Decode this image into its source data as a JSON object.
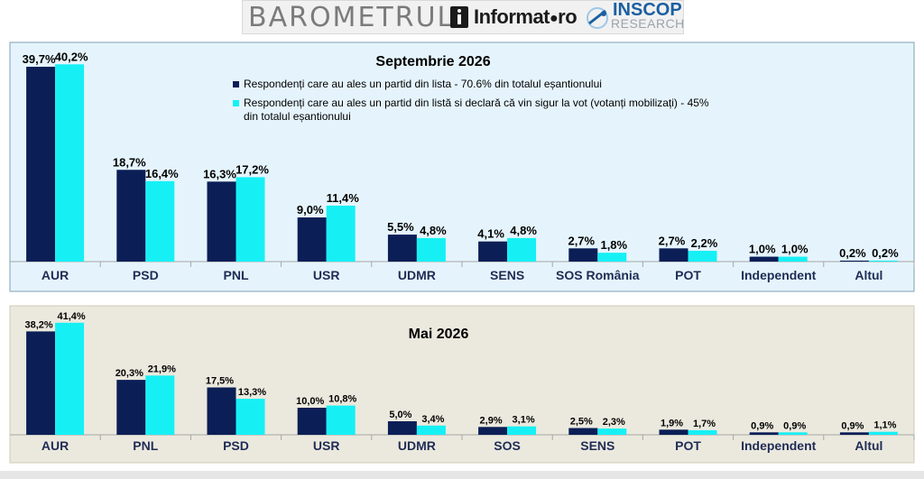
{
  "header": {
    "brand": "BAROMETRUL",
    "partner1": "Informat",
    "partner1_suffix": "ro",
    "partner2": "INSCOP",
    "partner2_sub": "RESEARCH"
  },
  "colors": {
    "series1": "#0b1e56",
    "series2": "#16f0f5",
    "panel1_bg": "#e5f4fc",
    "panel2_bg": "#ebe9de"
  },
  "legend": {
    "item1": "Respondenți care au ales un partid din lista - 70.6% din totalul eșantionului",
    "item2_line1": "Respondenți care au ales un partid din listă si declară că vin sigur la vot (votanți mobilizați) - 45%",
    "item2_line2": "din totalul eșantionului"
  },
  "chart_data": [
    {
      "type": "bar",
      "title": "Septembrie 2026",
      "categories": [
        "AUR",
        "PSD",
        "PNL",
        "USR",
        "UDMR",
        "SENS",
        "SOS România",
        "POT",
        "Independent",
        "Altul"
      ],
      "series": [
        {
          "name": "Respondenți care au ales un partid din lista - 70.6% din totalul eșantionului",
          "values": [
            39.7,
            18.7,
            16.3,
            9.0,
            5.5,
            4.1,
            2.7,
            2.7,
            1.0,
            0.2
          ],
          "labels": [
            "39,7%",
            "18,7%",
            "16,3%",
            "9,0%",
            "5,5%",
            "4,1%",
            "2,7%",
            "2,7%",
            "1,0%",
            "0,2%"
          ]
        },
        {
          "name": "Respondenți care au ales un partid din listă si declară că vin sigur la vot (votanți mobilizați) - 45% din totalul eșantionului",
          "values": [
            40.2,
            16.4,
            17.2,
            11.4,
            4.8,
            4.8,
            1.8,
            2.2,
            1.0,
            0.2
          ],
          "labels": [
            "40,2%",
            "16,4%",
            "17,2%",
            "11,4%",
            "4,8%",
            "4,8%",
            "1,8%",
            "2,2%",
            "1,0%",
            "0,2%"
          ]
        }
      ],
      "legend": "top-right",
      "grid": false
    },
    {
      "type": "bar",
      "title": "Mai 2026",
      "categories": [
        "AUR",
        "PNL",
        "PSD",
        "USR",
        "UDMR",
        "SOS",
        "SENS",
        "POT",
        "Independent",
        "Altul"
      ],
      "series": [
        {
          "values": [
            38.2,
            20.3,
            17.5,
            10.0,
            5.0,
            2.9,
            2.5,
            1.9,
            0.9,
            0.9
          ],
          "labels": [
            "38,2%",
            "20,3%",
            "17,5%",
            "10,0%",
            "5,0%",
            "2,9%",
            "2,5%",
            "1,9%",
            "0,9%",
            "0,9%"
          ]
        },
        {
          "values": [
            41.4,
            21.9,
            13.3,
            10.8,
            3.4,
            3.1,
            2.3,
            1.7,
            0.9,
            1.1
          ],
          "labels": [
            "41,4%",
            "21,9%",
            "13,3%",
            "10,8%",
            "3,4%",
            "3,1%",
            "2,3%",
            "1,7%",
            "0,9%",
            "1,1%"
          ]
        }
      ],
      "grid": false
    }
  ]
}
